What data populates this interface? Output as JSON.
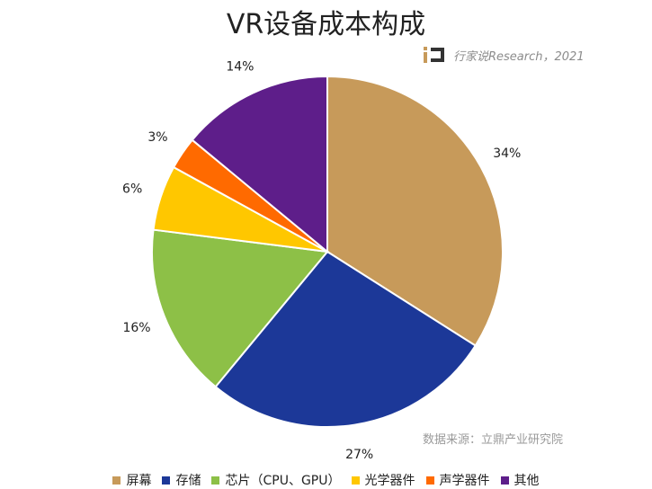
{
  "chart_data": {
    "type": "pie",
    "title": "VR设备成本构成",
    "categories": [
      "屏幕",
      "存储",
      "芯片（CPU、GPU）",
      "光学器件",
      "声学器件",
      "其他"
    ],
    "values": [
      34,
      27,
      16,
      6,
      3,
      14
    ],
    "value_labels": [
      "34%",
      "27%",
      "16%",
      "6%",
      "3%",
      "14%"
    ],
    "colors": [
      "#C79A5A",
      "#1C3898",
      "#8DC047",
      "#FFC700",
      "#FF6A00",
      "#5E1E8A"
    ],
    "legend_position": "bottom"
  },
  "watermark": {
    "text": "行家说Research，2021"
  },
  "source": "数据来源：立鼎产业研究院"
}
